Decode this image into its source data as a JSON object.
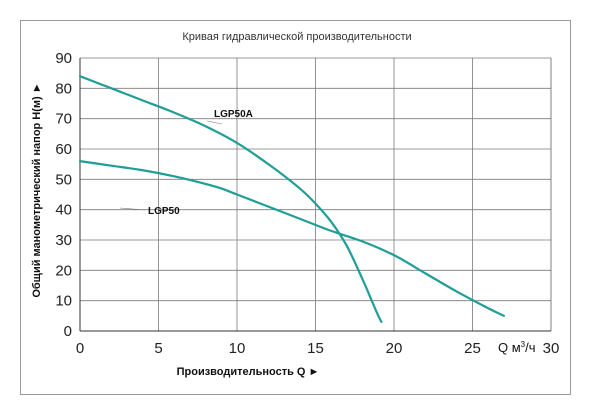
{
  "chart_data": {
    "type": "line",
    "title": "Кривая гидравлической производительности",
    "xlabel": "Производительность Q ►",
    "ylabel": "Общий манометрический напор Н(м) ►",
    "x_unit_main": "Q м",
    "x_unit_sup": "3",
    "x_unit_tail": "/ч",
    "xlim": [
      0,
      30
    ],
    "ylim": [
      0,
      90
    ],
    "x_ticks": [
      0,
      5,
      10,
      15,
      20,
      25,
      30
    ],
    "y_ticks": [
      0,
      10,
      20,
      30,
      40,
      50,
      60,
      70,
      80,
      90
    ],
    "x_tick_labels": [
      "0",
      "5",
      "10",
      "15",
      "20",
      "25",
      "30"
    ],
    "y_tick_labels": [
      "0",
      "10",
      "20",
      "30",
      "40",
      "50",
      "60",
      "70",
      "80",
      "90"
    ],
    "grid": true,
    "series": [
      {
        "name": "LGP50A",
        "color": "#1e9e96",
        "x": [
          0,
          2,
          4,
          6,
          8,
          10,
          12,
          14,
          15,
          16,
          17,
          18,
          18.5,
          19,
          19.2
        ],
        "y": [
          84,
          80,
          76,
          72,
          67.5,
          62,
          55,
          47,
          42,
          36,
          28,
          17,
          11,
          5,
          3
        ]
      },
      {
        "name": "LGP50",
        "color": "#1e9e96",
        "x": [
          0,
          2,
          4,
          6,
          8,
          9,
          10,
          12,
          14,
          16,
          18,
          20,
          22,
          24,
          26,
          27
        ],
        "y": [
          56,
          54.5,
          53,
          51,
          48.5,
          47,
          45,
          41,
          37,
          33,
          29.5,
          25,
          19,
          13,
          7.5,
          5
        ]
      }
    ]
  }
}
